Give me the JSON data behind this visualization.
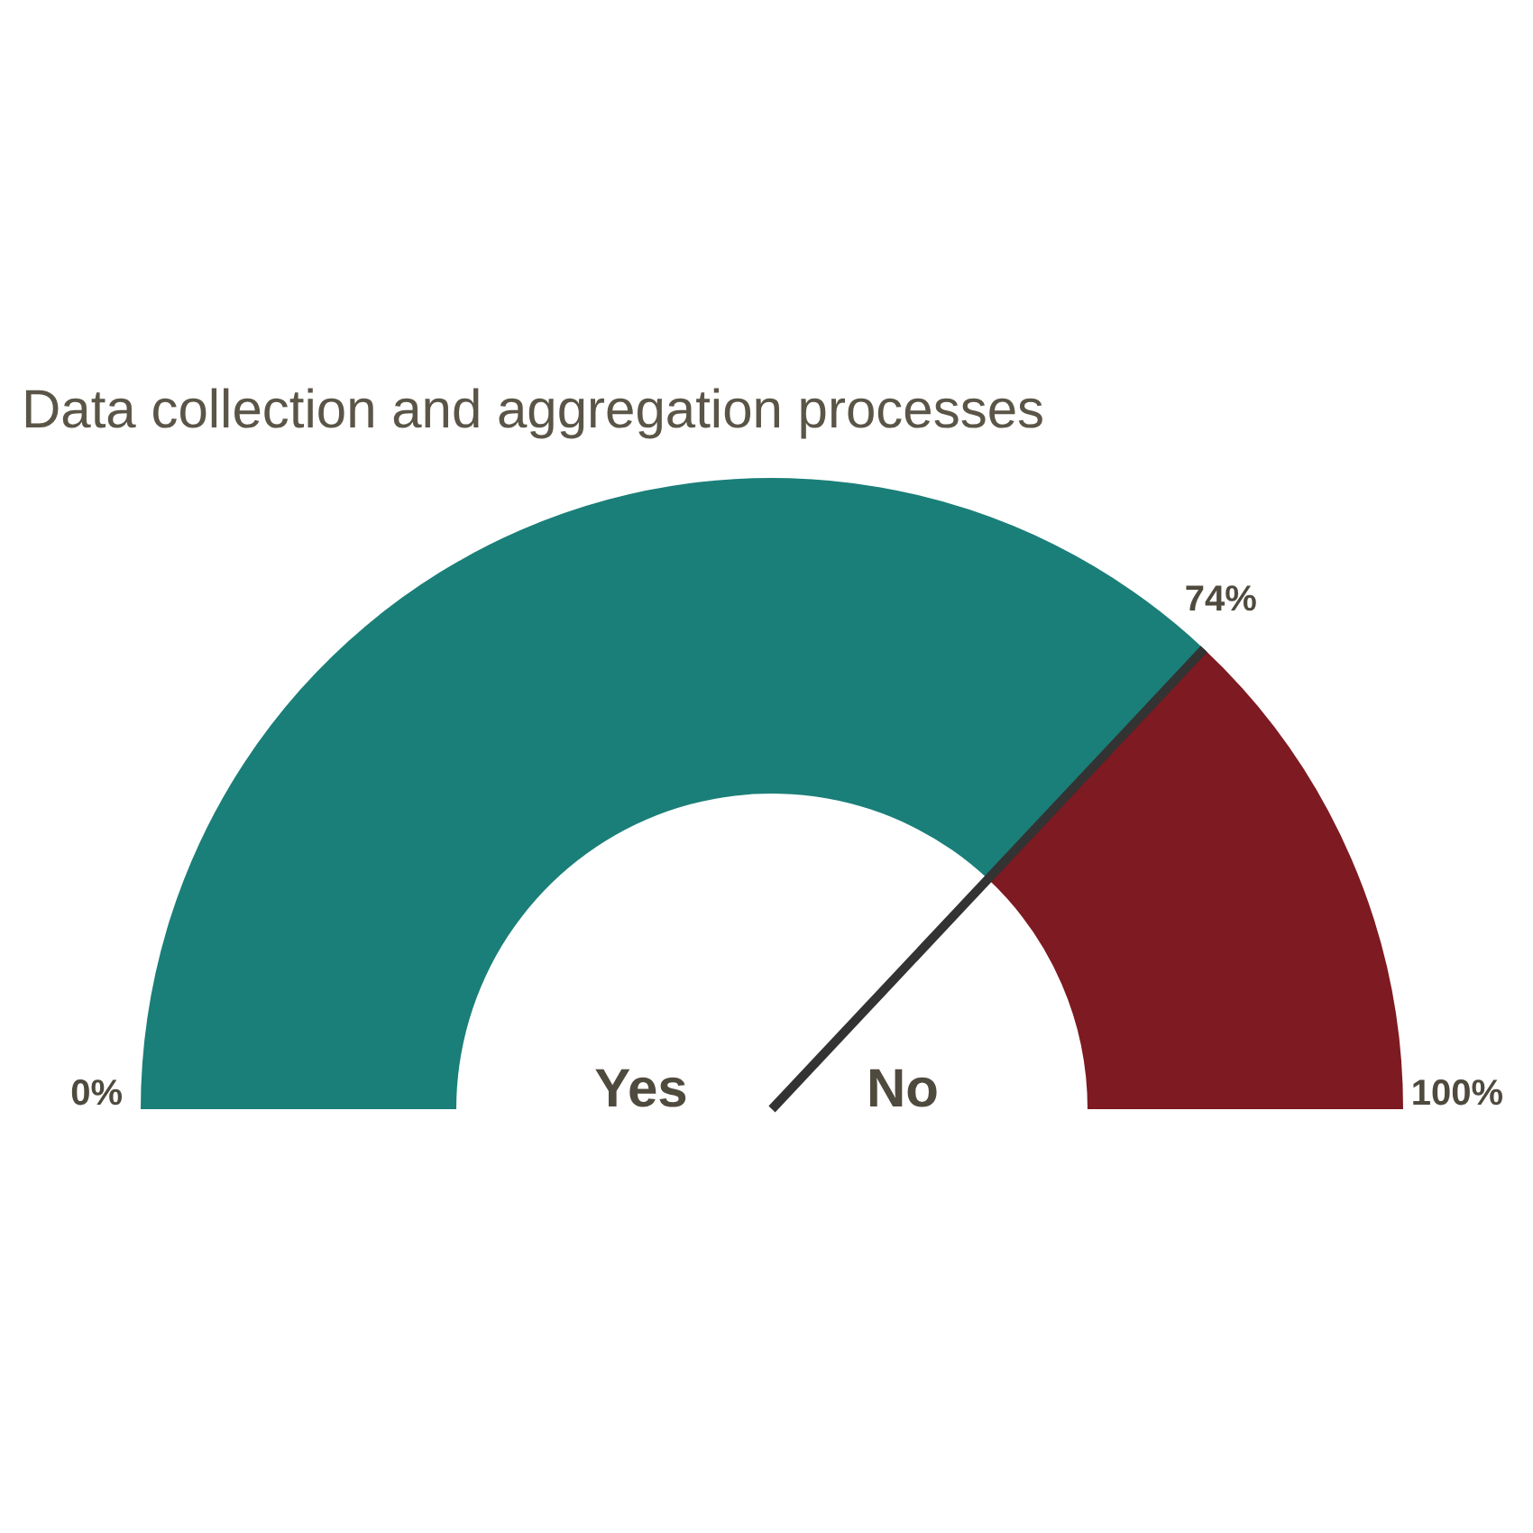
{
  "chart_data": {
    "type": "donut",
    "title": "Data collection and aggregation processes",
    "categories": [
      "Yes",
      "No"
    ],
    "values": [
      74,
      26
    ],
    "colors": [
      "#1a7f78",
      "#7e1a21"
    ],
    "value_labels": [
      "74%",
      null
    ],
    "needle": "Yes",
    "legend": false,
    "annotations": [
      "0%",
      "100%"
    ]
  }
}
